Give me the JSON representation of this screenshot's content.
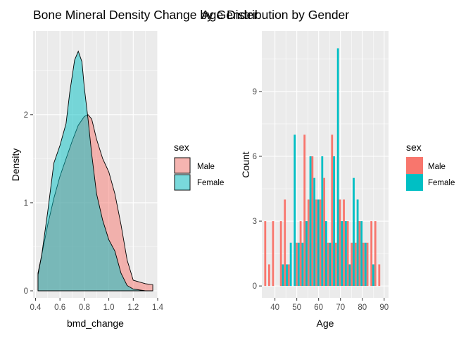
{
  "chart_data": [
    {
      "type": "area",
      "title": "Bone Mineral Density Change by Gender",
      "xlabel": "bmd_change",
      "ylabel": "Density",
      "xlim": [
        0.38,
        1.4
      ],
      "ylim": [
        -0.08,
        2.95
      ],
      "x_ticks": [
        "0.4",
        "0.6",
        "0.8",
        "1.0",
        "1.2",
        "1.4"
      ],
      "x_tick_values": [
        0.4,
        0.6,
        0.8,
        1.0,
        1.2,
        1.4
      ],
      "y_ticks": [
        "0",
        "1",
        "2"
      ],
      "y_tick_values": [
        0,
        1,
        2
      ],
      "grid": true,
      "legend": {
        "title": "sex",
        "position": "right"
      },
      "series": [
        {
          "name": "Male",
          "color": "#F8766D",
          "alpha": 0.5,
          "x": [
            0.42,
            0.45,
            0.5,
            0.55,
            0.6,
            0.65,
            0.7,
            0.75,
            0.8,
            0.83,
            0.86,
            0.9,
            0.95,
            1.0,
            1.05,
            1.1,
            1.15,
            1.2,
            1.25,
            1.3,
            1.36
          ],
          "y": [
            0.2,
            0.4,
            0.75,
            1.05,
            1.3,
            1.5,
            1.7,
            1.88,
            1.98,
            2.0,
            1.95,
            1.72,
            1.5,
            1.35,
            1.1,
            0.75,
            0.35,
            0.12,
            0.1,
            0.08,
            0.07
          ]
        },
        {
          "name": "Female",
          "color": "#00BFC4",
          "alpha": 0.5,
          "x": [
            0.42,
            0.45,
            0.5,
            0.55,
            0.6,
            0.65,
            0.68,
            0.72,
            0.75,
            0.78,
            0.8,
            0.83,
            0.86,
            0.9,
            0.95,
            1.0,
            1.05,
            1.1,
            1.15,
            1.2,
            1.25,
            1.3,
            1.36
          ],
          "y": [
            0.18,
            0.4,
            0.9,
            1.45,
            1.65,
            1.9,
            2.25,
            2.62,
            2.72,
            2.6,
            2.3,
            1.95,
            1.55,
            1.1,
            0.8,
            0.58,
            0.45,
            0.2,
            0.06,
            0.02,
            0.01,
            0.0,
            0.0
          ]
        }
      ]
    },
    {
      "type": "bar",
      "title": "Age Distribution by Gender",
      "xlabel": "Age",
      "ylabel": "Count",
      "xlim": [
        34,
        92
      ],
      "ylim": [
        -0.55,
        11.8
      ],
      "x_ticks": [
        "40",
        "50",
        "60",
        "70",
        "80",
        "90"
      ],
      "x_tick_values": [
        40,
        50,
        60,
        70,
        80,
        90
      ],
      "y_ticks": [
        "0",
        "3",
        "6",
        "9"
      ],
      "y_tick_values": [
        0,
        3,
        6,
        9
      ],
      "grid": true,
      "legend": {
        "title": "sex",
        "position": "right"
      },
      "bin_width": 1.8,
      "series": [
        {
          "name": "Male",
          "color": "#F8766D",
          "x": [
            36,
            37.8,
            39.6,
            41.4,
            43.2,
            45,
            46.8,
            48.6,
            50.4,
            52.2,
            54,
            55.8,
            57.6,
            59.4,
            61.2,
            63,
            64.8,
            66.6,
            68.4,
            70.2,
            72,
            73.8,
            75.6,
            77.4,
            79.2,
            81,
            82.8,
            84.6,
            86.4,
            88.2
          ],
          "values": [
            3,
            1,
            3,
            0,
            3,
            4,
            1,
            0,
            2,
            3,
            7,
            4,
            6,
            4,
            4,
            5,
            2,
            7,
            2,
            4,
            4,
            3,
            2,
            2,
            3,
            2,
            2,
            3,
            3,
            1
          ]
        },
        {
          "name": "Female",
          "color": "#00BFC4",
          "x": [
            36,
            37.8,
            39.6,
            41.4,
            43.2,
            45,
            46.8,
            48.6,
            50.4,
            52.2,
            54,
            55.8,
            57.6,
            59.4,
            61.2,
            63,
            64.8,
            66.6,
            68.4,
            70.2,
            72,
            73.8,
            75.6,
            77.4,
            79.2,
            81,
            82.8,
            84.6,
            86.4,
            88.2
          ],
          "values": [
            0,
            0,
            0,
            0,
            1,
            1,
            2,
            7,
            2,
            2,
            3,
            6,
            5,
            4,
            6,
            3,
            2,
            6,
            11,
            3,
            3,
            1,
            5,
            4,
            3,
            2,
            0,
            1,
            0,
            0
          ]
        }
      ]
    }
  ]
}
